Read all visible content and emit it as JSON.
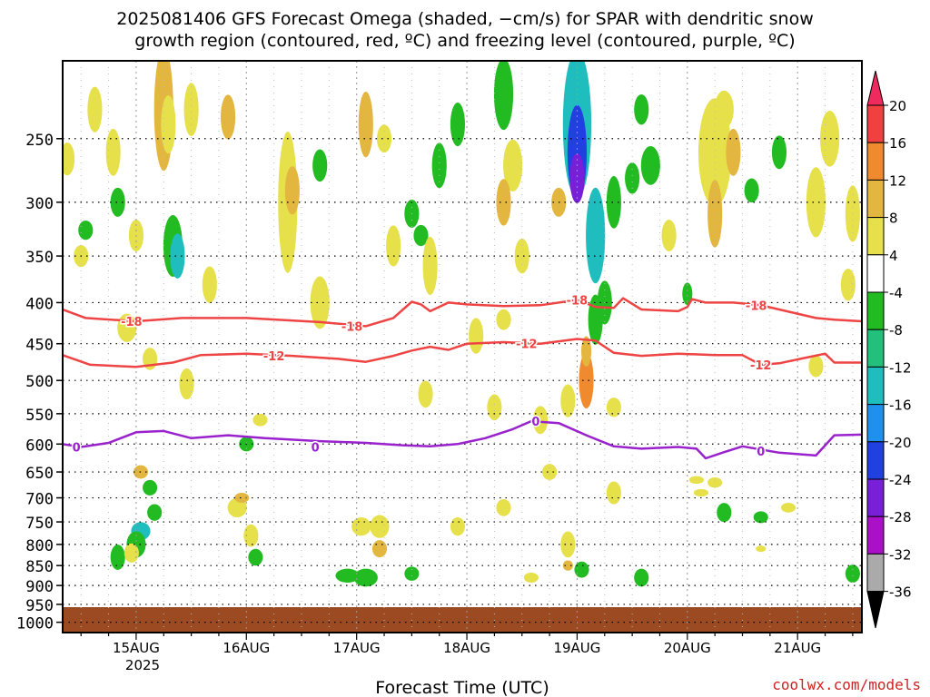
{
  "chart_data": {
    "type": "heatmap",
    "title_lines": [
      "2025081406 GFS Forecast Omega (shaded, −cm/s) for SPAR with dendritic snow",
      "growth region (contoured, red, ºC) and freezing level (contoured, purple, ºC)"
    ],
    "xlabel": "Forecast Time (UTC)",
    "credit": "coolwx.com/models",
    "x_range_hours": [
      -16,
      158
    ],
    "x_ticks": [
      {
        "label": "15AUG",
        "hour": 0
      },
      {
        "label": "16AUG",
        "hour": 24
      },
      {
        "label": "17AUG",
        "hour": 48
      },
      {
        "label": "18AUG",
        "hour": 72
      },
      {
        "label": "19AUG",
        "hour": 96
      },
      {
        "label": "20AUG",
        "hour": 120
      },
      {
        "label": "21AUG",
        "hour": 144
      }
    ],
    "year_label": "2025",
    "y_axis": {
      "scale": "log",
      "range_hpa": [
        200,
        1030
      ],
      "ticks": [
        250,
        300,
        350,
        400,
        450,
        500,
        550,
        600,
        650,
        700,
        750,
        800,
        850,
        900,
        950,
        1000
      ]
    },
    "colorbar": {
      "labels": [
        "20",
        "16",
        "12",
        "8",
        "4",
        "-4",
        "-8",
        "-12",
        "-16",
        "-20",
        "-24",
        "-28",
        "-32",
        "-36"
      ],
      "colors": [
        "#ee2a5e",
        "#f04040",
        "#ef8a2f",
        "#e2b63f",
        "#e6e04a",
        "#ffffff",
        "#22bb22",
        "#22c07a",
        "#1fbdbd",
        "#2090ee",
        "#2040e0",
        "#7720d8",
        "#aa10c8",
        "#aaaaaa",
        "#000000"
      ]
    },
    "contours": [
      {
        "name": "-18",
        "color": "#ee4444",
        "label": "-18",
        "points": [
          [
            -16,
            408
          ],
          [
            -11,
            418
          ],
          [
            0,
            422
          ],
          [
            10,
            418
          ],
          [
            24,
            418
          ],
          [
            40,
            423
          ],
          [
            50,
            428
          ],
          [
            56,
            418
          ],
          [
            60,
            399
          ],
          [
            62,
            402
          ],
          [
            64,
            410
          ],
          [
            68,
            400
          ],
          [
            72,
            402
          ],
          [
            80,
            404
          ],
          [
            88,
            403
          ],
          [
            96,
            397
          ],
          [
            100,
            405
          ],
          [
            104,
            406
          ],
          [
            106,
            395
          ],
          [
            110,
            408
          ],
          [
            118,
            410
          ],
          [
            120,
            405
          ],
          [
            121,
            396
          ],
          [
            124,
            400
          ],
          [
            130,
            400
          ],
          [
            136,
            403
          ],
          [
            140,
            408
          ],
          [
            148,
            418
          ],
          [
            152,
            420
          ],
          [
            158,
            422
          ]
        ],
        "label_at": [
          [
            -1,
            422
          ],
          [
            47,
            428
          ],
          [
            96,
            397
          ],
          [
            135,
            403
          ]
        ]
      },
      {
        "name": "-12",
        "color": "#ee4444",
        "label": "-12",
        "points": [
          [
            -16,
            465
          ],
          [
            -10,
            478
          ],
          [
            0,
            481
          ],
          [
            8,
            475
          ],
          [
            14,
            465
          ],
          [
            24,
            463
          ],
          [
            34,
            466
          ],
          [
            44,
            470
          ],
          [
            50,
            474
          ],
          [
            56,
            466
          ],
          [
            60,
            459
          ],
          [
            64,
            454
          ],
          [
            68,
            458
          ],
          [
            72,
            450
          ],
          [
            80,
            448
          ],
          [
            88,
            450
          ],
          [
            96,
            444
          ],
          [
            100,
            446
          ],
          [
            104,
            462
          ],
          [
            110,
            466
          ],
          [
            118,
            463
          ],
          [
            126,
            465
          ],
          [
            132,
            465
          ],
          [
            136,
            478
          ],
          [
            140,
            476
          ],
          [
            150,
            463
          ],
          [
            152,
            475
          ],
          [
            158,
            475
          ]
        ],
        "label_at": [
          [
            30,
            466
          ],
          [
            85,
            450
          ],
          [
            136,
            478
          ]
        ]
      },
      {
        "name": "0",
        "color": "#9922cc",
        "label": "0",
        "points": [
          [
            -16,
            600
          ],
          [
            -12,
            605
          ],
          [
            -6,
            598
          ],
          [
            0,
            580
          ],
          [
            6,
            578
          ],
          [
            12,
            590
          ],
          [
            20,
            585
          ],
          [
            28,
            590
          ],
          [
            40,
            595
          ],
          [
            50,
            598
          ],
          [
            58,
            602
          ],
          [
            64,
            604
          ],
          [
            70,
            600
          ],
          [
            76,
            590
          ],
          [
            82,
            575
          ],
          [
            86,
            562
          ],
          [
            92,
            565
          ],
          [
            98,
            585
          ],
          [
            104,
            604
          ],
          [
            110,
            608
          ],
          [
            118,
            605
          ],
          [
            122,
            608
          ],
          [
            124,
            625
          ],
          [
            128,
            614
          ],
          [
            132,
            604
          ],
          [
            140,
            615
          ],
          [
            148,
            620
          ],
          [
            152,
            585
          ],
          [
            158,
            584
          ]
        ],
        "label_at": [
          [
            -13,
            605
          ],
          [
            39,
            605
          ],
          [
            87,
            562
          ],
          [
            136,
            612
          ]
        ]
      }
    ],
    "ground_pressure_hpa": 970
  }
}
